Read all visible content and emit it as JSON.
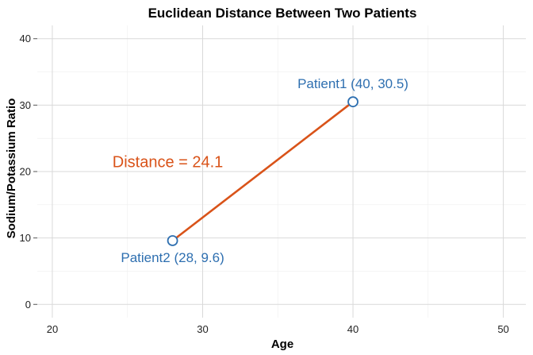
{
  "chart_data": {
    "type": "scatter",
    "title": "Euclidean Distance Between Two Patients",
    "xlabel": "Age",
    "ylabel": "Sodium/Potassium Ratio",
    "xlim": [
      19,
      51.5
    ],
    "ylim": [
      -2,
      42
    ],
    "x_ticks": [
      20,
      30,
      40,
      50
    ],
    "y_ticks": [
      0,
      10,
      20,
      30,
      40
    ],
    "x_tick_labels": [
      "20",
      "30",
      "40",
      "50"
    ],
    "y_tick_labels": [
      "0",
      "10",
      "20",
      "30",
      "40"
    ],
    "grid": true,
    "points": [
      {
        "x": 40,
        "y": 30.5,
        "label": "Patient1 (40, 30.5)"
      },
      {
        "x": 28,
        "y": 9.6,
        "label": "Patient2 (28, 9.6)"
      }
    ],
    "segment": {
      "from": [
        28,
        9.6
      ],
      "to": [
        40,
        30.5
      ]
    },
    "annotations": [
      {
        "text": "Distance = 24.1",
        "x": 24,
        "y": 21.5
      }
    ],
    "colors": {
      "line": "#d95319",
      "point_stroke": "#2e6fb0",
      "point_label": "#2e6fb0",
      "annotation": "#d95319",
      "grid_major": "#d9d9d9",
      "grid_minor": "#eeeeee"
    }
  }
}
